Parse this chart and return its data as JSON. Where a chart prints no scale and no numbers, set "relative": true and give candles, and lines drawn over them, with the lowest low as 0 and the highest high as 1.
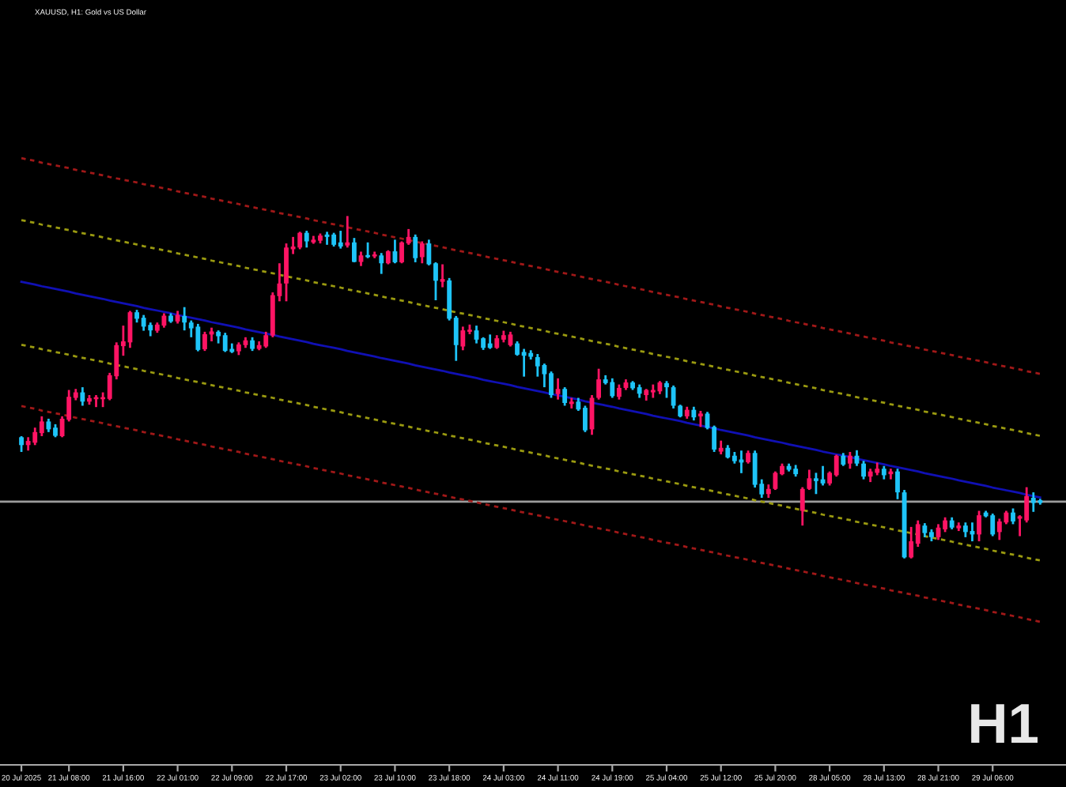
{
  "chart_data": {
    "type": "candlestick",
    "title": "XAUUSD, H1: Gold vs US Dollar",
    "relative": true,
    "tick_labels": "x",
    "categories": [
      "20 Jul 2025",
      null,
      null,
      null,
      null,
      null,
      null,
      "21 Jul 08:00",
      null,
      null,
      null,
      null,
      null,
      null,
      null,
      "21 Jul 16:00",
      null,
      null,
      null,
      null,
      null,
      null,
      null,
      "22 Jul 01:00",
      null,
      null,
      null,
      null,
      null,
      null,
      null,
      "22 Jul 09:00",
      null,
      null,
      null,
      null,
      null,
      null,
      null,
      "22 Jul 17:00",
      null,
      null,
      null,
      null,
      null,
      null,
      null,
      "23 Jul 02:00",
      null,
      null,
      null,
      null,
      null,
      null,
      null,
      "23 Jul 10:00",
      null,
      null,
      null,
      null,
      null,
      null,
      null,
      "23 Jul 18:00",
      null,
      null,
      null,
      null,
      null,
      null,
      null,
      "24 Jul 03:00",
      null,
      null,
      null,
      null,
      null,
      null,
      null,
      "24 Jul 11:00",
      null,
      null,
      null,
      null,
      null,
      null,
      null,
      "24 Jul 19:00",
      null,
      null,
      null,
      null,
      null,
      null,
      null,
      "25 Jul 04:00",
      null,
      null,
      null,
      null,
      null,
      null,
      null,
      "25 Jul 12:00",
      null,
      null,
      null,
      null,
      null,
      null,
      null,
      "25 Jul 20:00",
      null,
      null,
      null,
      null,
      null,
      null,
      null,
      "28 Jul 05:00",
      null,
      null,
      null,
      null,
      null,
      null,
      null,
      "28 Jul 13:00",
      null,
      null,
      null,
      null,
      null,
      null,
      null,
      "28 Jul 21:00",
      null,
      null,
      null,
      null,
      null,
      null,
      null,
      "29 Jul 06:00",
      null,
      null,
      null,
      null,
      null,
      null,
      null
    ],
    "ohlc": [
      [
        0.354,
        0.357,
        0.311,
        0.331
      ],
      [
        0.331,
        0.354,
        0.315,
        0.343
      ],
      [
        0.338,
        0.382,
        0.331,
        0.369
      ],
      [
        0.366,
        0.415,
        0.357,
        0.4
      ],
      [
        0.4,
        0.408,
        0.369,
        0.377
      ],
      [
        0.382,
        0.392,
        0.354,
        0.358
      ],
      [
        0.357,
        0.415,
        0.354,
        0.408
      ],
      [
        0.405,
        0.492,
        0.4,
        0.472
      ],
      [
        0.469,
        0.495,
        0.462,
        0.485
      ],
      [
        0.485,
        0.5,
        0.446,
        0.458
      ],
      [
        0.458,
        0.477,
        0.449,
        0.468
      ],
      [
        0.465,
        0.477,
        0.442,
        0.468
      ],
      [
        0.465,
        0.485,
        0.442,
        0.471
      ],
      [
        0.466,
        0.542,
        0.462,
        0.535
      ],
      [
        0.532,
        0.631,
        0.523,
        0.623
      ],
      [
        0.62,
        0.68,
        0.592,
        0.634
      ],
      [
        0.631,
        0.723,
        0.615,
        0.719
      ],
      [
        0.719,
        0.726,
        0.689,
        0.7
      ],
      [
        0.703,
        0.711,
        0.665,
        0.677
      ],
      [
        0.682,
        0.689,
        0.649,
        0.666
      ],
      [
        0.665,
        0.689,
        0.659,
        0.683
      ],
      [
        0.68,
        0.716,
        0.674,
        0.709
      ],
      [
        0.709,
        0.716,
        0.688,
        0.692
      ],
      [
        0.692,
        0.723,
        0.686,
        0.711
      ],
      [
        0.708,
        0.734,
        0.666,
        0.689
      ],
      [
        0.689,
        0.695,
        0.646,
        0.672
      ],
      [
        0.677,
        0.685,
        0.605,
        0.609
      ],
      [
        0.611,
        0.662,
        0.606,
        0.655
      ],
      [
        0.654,
        0.674,
        0.634,
        0.663
      ],
      [
        0.662,
        0.666,
        0.628,
        0.649
      ],
      [
        0.652,
        0.659,
        0.603,
        0.606
      ],
      [
        0.612,
        0.628,
        0.6,
        0.603
      ],
      [
        0.605,
        0.631,
        0.594,
        0.625
      ],
      [
        0.623,
        0.646,
        0.615,
        0.637
      ],
      [
        0.637,
        0.646,
        0.606,
        0.612
      ],
      [
        0.612,
        0.634,
        0.608,
        0.623
      ],
      [
        0.619,
        0.662,
        0.615,
        0.652
      ],
      [
        0.651,
        0.777,
        0.646,
        0.769
      ],
      [
        0.766,
        0.862,
        0.751,
        0.803
      ],
      [
        0.803,
        0.92,
        0.751,
        0.908
      ],
      [
        0.903,
        0.939,
        0.889,
        0.911
      ],
      [
        0.908,
        0.954,
        0.903,
        0.951
      ],
      [
        0.951,
        0.957,
        0.908,
        0.926
      ],
      [
        0.923,
        0.942,
        0.919,
        0.931
      ],
      [
        0.928,
        0.949,
        0.92,
        0.943
      ],
      [
        0.946,
        0.954,
        0.916,
        0.939
      ],
      [
        0.946,
        0.951,
        0.911,
        0.916
      ],
      [
        0.923,
        0.957,
        0.905,
        0.911
      ],
      [
        0.914,
        1,
        0.908,
        0.923
      ],
      [
        0.923,
        0.936,
        0.865,
        0.866
      ],
      [
        0.866,
        0.896,
        0.854,
        0.885
      ],
      [
        0.885,
        0.923,
        0.877,
        0.88
      ],
      [
        0.882,
        0.896,
        0.877,
        0.888
      ],
      [
        0.885,
        0.892,
        0.831,
        0.862
      ],
      [
        0.862,
        0.9,
        0.859,
        0.897
      ],
      [
        0.897,
        0.931,
        0.862,
        0.865
      ],
      [
        0.865,
        0.926,
        0.862,
        0.923
      ],
      [
        0.92,
        0.962,
        0.916,
        0.939
      ],
      [
        0.939,
        0.946,
        0.865,
        0.877
      ],
      [
        0.88,
        0.926,
        0.862,
        0.92
      ],
      [
        0.92,
        0.931,
        0.856,
        0.859
      ],
      [
        0.862,
        0.865,
        0.754,
        0.811
      ],
      [
        0.808,
        0.859,
        0.792,
        0.816
      ],
      [
        0.812,
        0.819,
        0.695,
        0.7
      ],
      [
        0.703,
        0.708,
        0.577,
        0.623
      ],
      [
        0.619,
        0.677,
        0.608,
        0.666
      ],
      [
        0.662,
        0.683,
        0.655,
        0.668
      ],
      [
        0.666,
        0.68,
        0.628,
        0.639
      ],
      [
        0.643,
        0.646,
        0.609,
        0.615
      ],
      [
        0.628,
        0.654,
        0.612,
        0.615
      ],
      [
        0.615,
        0.652,
        0.612,
        0.643
      ],
      [
        0.639,
        0.665,
        0.631,
        0.652
      ],
      [
        0.623,
        0.662,
        0.619,
        0.654
      ],
      [
        0.628,
        0.634,
        0.592,
        0.595
      ],
      [
        0.603,
        0.612,
        0.531,
        0.592
      ],
      [
        0.6,
        0.608,
        0.581,
        0.589
      ],
      [
        0.588,
        0.597,
        0.531,
        0.561
      ],
      [
        0.565,
        0.569,
        0.5,
        0.538
      ],
      [
        0.541,
        0.546,
        0.469,
        0.477
      ],
      [
        0.48,
        0.526,
        0.464,
        0.495
      ],
      [
        0.495,
        0.5,
        0.446,
        0.454
      ],
      [
        0.451,
        0.469,
        0.438,
        0.458
      ],
      [
        0.458,
        0.469,
        0.431,
        0.435
      ],
      [
        0.44,
        0.446,
        0.369,
        0.374
      ],
      [
        0.377,
        0.477,
        0.361,
        0.469
      ],
      [
        0.469,
        0.554,
        0.464,
        0.523
      ],
      [
        0.523,
        0.535,
        0.508,
        0.512
      ],
      [
        0.515,
        0.526,
        0.469,
        0.474
      ],
      [
        0.472,
        0.508,
        0.464,
        0.498
      ],
      [
        0.498,
        0.523,
        0.492,
        0.514
      ],
      [
        0.514,
        0.518,
        0.492,
        0.497
      ],
      [
        0.5,
        0.508,
        0.469,
        0.481
      ],
      [
        0.477,
        0.495,
        0.461,
        0.492
      ],
      [
        0.485,
        0.508,
        0.469,
        0.492
      ],
      [
        0.488,
        0.518,
        0.48,
        0.514
      ],
      [
        0.512,
        0.518,
        0.469,
        0.5
      ],
      [
        0.5,
        0.505,
        0.438,
        0.446
      ],
      [
        0.446,
        0.449,
        0.412,
        0.415
      ],
      [
        0.415,
        0.443,
        0.408,
        0.434
      ],
      [
        0.434,
        0.443,
        0.403,
        0.412
      ],
      [
        0.415,
        0.431,
        0.384,
        0.423
      ],
      [
        0.423,
        0.428,
        0.377,
        0.381
      ],
      [
        0.384,
        0.388,
        0.311,
        0.318
      ],
      [
        0.312,
        0.344,
        0.304,
        0.323
      ],
      [
        0.323,
        0.331,
        0.292,
        0.295
      ],
      [
        0.3,
        0.311,
        0.277,
        0.284
      ],
      [
        0.289,
        0.315,
        0.249,
        0.28
      ],
      [
        0.281,
        0.315,
        0.277,
        0.308
      ],
      [
        0.308,
        0.315,
        0.207,
        0.215
      ],
      [
        0.218,
        0.231,
        0.177,
        0.187
      ],
      [
        0.188,
        0.216,
        0.177,
        0.203
      ],
      [
        0.203,
        0.254,
        0.2,
        0.25
      ],
      [
        0.246,
        0.277,
        0.243,
        0.27
      ],
      [
        0.27,
        0.277,
        0.254,
        0.259
      ],
      [
        0.262,
        0.273,
        0.239,
        0.246
      ],
      [
        0.139,
        0.208,
        0.096,
        0.203
      ],
      [
        0.203,
        0.259,
        0.2,
        0.234
      ],
      [
        0.234,
        0.25,
        0.188,
        0.226
      ],
      [
        0.231,
        0.27,
        0.213,
        0.219
      ],
      [
        0.219,
        0.254,
        0.213,
        0.25
      ],
      [
        0.243,
        0.303,
        0.239,
        0.3
      ],
      [
        0.3,
        0.308,
        0.27,
        0.274
      ],
      [
        0.277,
        0.311,
        0.262,
        0.3
      ],
      [
        0.3,
        0.316,
        0.27,
        0.277
      ],
      [
        0.277,
        0.285,
        0.231,
        0.239
      ],
      [
        0.239,
        0.262,
        0.223,
        0.254
      ],
      [
        0.25,
        0.28,
        0.243,
        0.262
      ],
      [
        0.262,
        0.27,
        0.231,
        0.243
      ],
      [
        0.246,
        0.262,
        0.231,
        0.254
      ],
      [
        0.254,
        0.262,
        0.173,
        0.193
      ],
      [
        0.193,
        0.2,
        0,
        0.003
      ],
      [
        0.003,
        0.092,
        0,
        0.05
      ],
      [
        0.043,
        0.111,
        0.034,
        0.1
      ],
      [
        0.096,
        0.103,
        0.062,
        0.074
      ],
      [
        0.077,
        0.085,
        0.05,
        0.062
      ],
      [
        0.062,
        0.1,
        0.054,
        0.09
      ],
      [
        0.085,
        0.12,
        0.077,
        0.111
      ],
      [
        0.111,
        0.12,
        0.085,
        0.09
      ],
      [
        0.088,
        0.105,
        0.08,
        0.096
      ],
      [
        0.096,
        0.105,
        0.062,
        0.077
      ],
      [
        0.08,
        0.105,
        0.05,
        0.07
      ],
      [
        0.07,
        0.139,
        0.05,
        0.126
      ],
      [
        0.134,
        0.139,
        0.12,
        0.123
      ],
      [
        0.126,
        0.131,
        0.065,
        0.07
      ],
      [
        0.077,
        0.116,
        0.054,
        0.108
      ],
      [
        0.105,
        0.139,
        0.1,
        0.134
      ],
      [
        0.134,
        0.146,
        0.1,
        0.108
      ],
      [
        0.116,
        0.126,
        0.065,
        0.123
      ],
      [
        0.111,
        0.208,
        0.105,
        0.182
      ],
      [
        0.177,
        0.193,
        0.136,
        0.162
      ],
      [
        0.17,
        0.174,
        0.157,
        0.162
      ]
    ],
    "colors": [
      "#1ec4f8",
      "#ff1464",
      "#ff1464",
      "#ff1464",
      "#1ec4f8",
      "#1ec4f8",
      "#ff1464",
      "#ff1464",
      "#ff1464",
      "#1ec4f8",
      "#ff1464",
      "#ff1464",
      "#ff1464",
      "#ff1464",
      "#ff1464",
      "#ff1464",
      "#ff1464",
      "#1ec4f8",
      "#1ec4f8",
      "#1ec4f8",
      "#ff1464",
      "#ff1464",
      "#1ec4f8",
      "#ff1464",
      "#1ec4f8",
      "#1ec4f8",
      "#1ec4f8",
      "#ff1464",
      "#ff1464",
      "#1ec4f8",
      "#1ec4f8",
      "#1ec4f8",
      "#ff1464",
      "#ff1464",
      "#1ec4f8",
      "#ff1464",
      "#ff1464",
      "#ff1464",
      "#ff1464",
      "#ff1464",
      "#ff1464",
      "#ff1464",
      "#1ec4f8",
      "#ff1464",
      "#ff1464",
      "#1ec4f8",
      "#1ec4f8",
      "#1ec4f8",
      "#ff1464",
      "#1ec4f8",
      "#ff1464",
      "#1ec4f8",
      "#ff1464",
      "#1ec4f8",
      "#ff1464",
      "#1ec4f8",
      "#ff1464",
      "#ff1464",
      "#1ec4f8",
      "#ff1464",
      "#1ec4f8",
      "#1ec4f8",
      "#ff1464",
      "#1ec4f8",
      "#1ec4f8",
      "#ff1464",
      "#ff1464",
      "#1ec4f8",
      "#1ec4f8",
      "#1ec4f8",
      "#ff1464",
      "#ff1464",
      "#ff1464",
      "#1ec4f8",
      "#1ec4f8",
      "#1ec4f8",
      "#1ec4f8",
      "#1ec4f8",
      "#1ec4f8",
      "#ff1464",
      "#1ec4f8",
      "#ff1464",
      "#1ec4f8",
      "#1ec4f8",
      "#ff1464",
      "#ff1464",
      "#1ec4f8",
      "#1ec4f8",
      "#ff1464",
      "#ff1464",
      "#1ec4f8",
      "#1ec4f8",
      "#ff1464",
      "#ff1464",
      "#ff1464",
      "#1ec4f8",
      "#1ec4f8",
      "#1ec4f8",
      "#ff1464",
      "#1ec4f8",
      "#ff1464",
      "#1ec4f8",
      "#1ec4f8",
      "#ff1464",
      "#1ec4f8",
      "#1ec4f8",
      "#1ec4f8",
      "#ff1464",
      "#1ec4f8",
      "#1ec4f8",
      "#ff1464",
      "#ff1464",
      "#ff1464",
      "#1ec4f8",
      "#1ec4f8",
      "#ff1464",
      "#ff1464",
      "#1ec4f8",
      "#1ec4f8",
      "#ff1464",
      "#ff1464",
      "#1ec4f8",
      "#ff1464",
      "#1ec4f8",
      "#1ec4f8",
      "#ff1464",
      "#ff1464",
      "#1ec4f8",
      "#ff1464",
      "#1ec4f8",
      "#1ec4f8",
      "#ff1464",
      "#ff1464",
      "#1ec4f8",
      "#1ec4f8",
      "#ff1464",
      "#ff1464",
      "#1ec4f8",
      "#ff1464",
      "#1ec4f8",
      "#1ec4f8",
      "#ff1464",
      "#1ec4f8",
      "#1ec4f8",
      "#ff1464",
      "#ff1464",
      "#1ec4f8",
      "#ff1464",
      "#ff1464",
      "#1ec4f8",
      "#1ec4f8"
    ],
    "series": [
      {
        "type": "line",
        "color": "#a01818",
        "line_style": "dotted",
        "values": [
          1.169,
          1.165,
          1.161,
          1.156,
          1.152,
          1.148,
          1.144,
          1.14,
          1.135,
          1.131,
          1.127,
          1.123,
          1.119,
          1.114,
          1.11,
          1.106,
          1.102,
          1.098,
          1.093,
          1.089,
          1.085,
          1.081,
          1.077,
          1.072,
          1.068,
          1.064,
          1.06,
          1.056,
          1.051,
          1.047,
          1.043,
          1.039,
          1.035,
          1.03,
          1.026,
          1.022,
          1.018,
          1.014,
          1.009,
          1.005,
          1.001,
          0.997,
          0.993,
          0.988,
          0.984,
          0.98,
          0.976,
          0.972,
          0.967,
          0.963,
          0.959,
          0.955,
          0.951,
          0.946,
          0.942,
          0.938,
          0.934,
          0.93,
          0.925,
          0.921,
          0.917,
          0.913,
          0.909,
          0.904,
          0.9,
          0.896,
          0.892,
          0.888,
          0.883,
          0.879,
          0.875,
          0.871,
          0.867,
          0.862,
          0.858,
          0.854,
          0.85,
          0.846,
          0.841,
          0.837,
          0.833,
          0.829,
          0.825,
          0.82,
          0.816,
          0.812,
          0.808,
          0.804,
          0.799,
          0.795,
          0.791,
          0.787,
          0.783,
          0.778,
          0.774,
          0.77,
          0.766,
          0.762,
          0.757,
          0.753,
          0.749,
          0.745,
          0.741,
          0.736,
          0.732,
          0.728,
          0.724,
          0.72,
          0.715,
          0.711,
          0.707,
          0.703,
          0.699,
          0.694,
          0.69,
          0.686,
          0.682,
          0.678,
          0.673,
          0.669,
          0.665,
          0.661,
          0.657,
          0.652,
          0.648,
          0.644,
          0.64,
          0.636,
          0.631,
          0.627,
          0.623,
          0.619,
          0.615,
          0.61,
          0.606,
          0.602,
          0.598,
          0.594,
          0.589,
          0.585,
          0.581,
          0.577,
          0.573,
          0.568,
          0.564,
          0.56,
          0.556,
          0.552,
          0.547,
          0.543,
          0.539
        ]
      },
      {
        "type": "line",
        "color": "#9a9a10",
        "line_style": "dotted",
        "values": [
          0.988,
          0.984,
          0.98,
          0.975,
          0.971,
          0.967,
          0.963,
          0.959,
          0.954,
          0.95,
          0.946,
          0.942,
          0.938,
          0.933,
          0.929,
          0.925,
          0.921,
          0.917,
          0.912,
          0.908,
          0.904,
          0.9,
          0.896,
          0.891,
          0.887,
          0.883,
          0.879,
          0.875,
          0.87,
          0.866,
          0.862,
          0.858,
          0.854,
          0.849,
          0.845,
          0.841,
          0.837,
          0.833,
          0.828,
          0.824,
          0.82,
          0.816,
          0.812,
          0.807,
          0.803,
          0.799,
          0.795,
          0.791,
          0.786,
          0.782,
          0.778,
          0.774,
          0.77,
          0.765,
          0.761,
          0.757,
          0.753,
          0.749,
          0.744,
          0.74,
          0.736,
          0.732,
          0.728,
          0.723,
          0.719,
          0.715,
          0.711,
          0.707,
          0.702,
          0.698,
          0.694,
          0.69,
          0.686,
          0.681,
          0.677,
          0.673,
          0.669,
          0.665,
          0.66,
          0.656,
          0.652,
          0.648,
          0.644,
          0.639,
          0.635,
          0.631,
          0.627,
          0.623,
          0.618,
          0.614,
          0.61,
          0.606,
          0.602,
          0.597,
          0.593,
          0.589,
          0.585,
          0.581,
          0.576,
          0.572,
          0.568,
          0.564,
          0.56,
          0.555,
          0.551,
          0.547,
          0.543,
          0.539,
          0.534,
          0.53,
          0.526,
          0.522,
          0.518,
          0.513,
          0.509,
          0.505,
          0.501,
          0.497,
          0.492,
          0.488,
          0.484,
          0.48,
          0.476,
          0.471,
          0.467,
          0.463,
          0.459,
          0.455,
          0.45,
          0.446,
          0.442,
          0.438,
          0.434,
          0.429,
          0.425,
          0.421,
          0.417,
          0.413,
          0.408,
          0.404,
          0.4,
          0.396,
          0.392,
          0.387,
          0.383,
          0.379,
          0.375,
          0.371,
          0.366,
          0.362,
          0.358
        ]
      },
      {
        "type": "line",
        "color": "#1010b4",
        "line_style": "solid",
        "values": [
          0.808,
          0.804,
          0.8,
          0.795,
          0.791,
          0.787,
          0.783,
          0.779,
          0.774,
          0.77,
          0.766,
          0.762,
          0.758,
          0.753,
          0.749,
          0.745,
          0.741,
          0.737,
          0.732,
          0.728,
          0.724,
          0.72,
          0.716,
          0.711,
          0.707,
          0.703,
          0.699,
          0.695,
          0.69,
          0.686,
          0.682,
          0.678,
          0.674,
          0.669,
          0.665,
          0.661,
          0.657,
          0.653,
          0.648,
          0.644,
          0.64,
          0.636,
          0.632,
          0.627,
          0.623,
          0.619,
          0.615,
          0.611,
          0.606,
          0.602,
          0.598,
          0.594,
          0.59,
          0.585,
          0.581,
          0.577,
          0.573,
          0.569,
          0.564,
          0.56,
          0.556,
          0.552,
          0.548,
          0.543,
          0.539,
          0.535,
          0.531,
          0.527,
          0.522,
          0.518,
          0.514,
          0.51,
          0.506,
          0.501,
          0.497,
          0.493,
          0.489,
          0.485,
          0.48,
          0.476,
          0.472,
          0.468,
          0.464,
          0.459,
          0.455,
          0.451,
          0.447,
          0.443,
          0.438,
          0.434,
          0.43,
          0.426,
          0.422,
          0.417,
          0.413,
          0.409,
          0.405,
          0.401,
          0.396,
          0.392,
          0.388,
          0.384,
          0.38,
          0.375,
          0.371,
          0.367,
          0.363,
          0.359,
          0.354,
          0.35,
          0.346,
          0.342,
          0.338,
          0.333,
          0.329,
          0.325,
          0.321,
          0.317,
          0.312,
          0.308,
          0.304,
          0.3,
          0.296,
          0.291,
          0.287,
          0.283,
          0.279,
          0.275,
          0.27,
          0.266,
          0.262,
          0.258,
          0.254,
          0.249,
          0.245,
          0.241,
          0.237,
          0.233,
          0.228,
          0.224,
          0.22,
          0.216,
          0.212,
          0.207,
          0.203,
          0.199,
          0.195,
          0.191,
          0.186,
          0.182,
          0.178
        ]
      },
      {
        "type": "line",
        "color": "#9a9a10",
        "line_style": "dotted",
        "values": [
          0.624,
          0.62,
          0.616,
          0.611,
          0.607,
          0.603,
          0.599,
          0.595,
          0.59,
          0.586,
          0.582,
          0.578,
          0.574,
          0.569,
          0.565,
          0.561,
          0.557,
          0.553,
          0.548,
          0.544,
          0.54,
          0.536,
          0.532,
          0.527,
          0.523,
          0.519,
          0.515,
          0.511,
          0.506,
          0.502,
          0.498,
          0.494,
          0.49,
          0.485,
          0.481,
          0.477,
          0.473,
          0.469,
          0.464,
          0.46,
          0.456,
          0.452,
          0.448,
          0.443,
          0.439,
          0.435,
          0.431,
          0.427,
          0.422,
          0.418,
          0.414,
          0.41,
          0.406,
          0.401,
          0.397,
          0.393,
          0.389,
          0.385,
          0.38,
          0.376,
          0.372,
          0.368,
          0.364,
          0.359,
          0.355,
          0.351,
          0.347,
          0.343,
          0.338,
          0.334,
          0.33,
          0.326,
          0.322,
          0.317,
          0.313,
          0.309,
          0.305,
          0.301,
          0.296,
          0.292,
          0.288,
          0.284,
          0.28,
          0.275,
          0.271,
          0.267,
          0.263,
          0.259,
          0.254,
          0.25,
          0.246,
          0.242,
          0.238,
          0.233,
          0.229,
          0.225,
          0.221,
          0.217,
          0.212,
          0.208,
          0.204,
          0.2,
          0.196,
          0.191,
          0.187,
          0.183,
          0.179,
          0.175,
          0.17,
          0.166,
          0.162,
          0.158,
          0.154,
          0.149,
          0.145,
          0.141,
          0.137,
          0.133,
          0.128,
          0.124,
          0.12,
          0.116,
          0.112,
          0.107,
          0.103,
          0.099,
          0.095,
          0.091,
          0.086,
          0.082,
          0.078,
          0.074,
          0.07,
          0.065,
          0.061,
          0.057,
          0.053,
          0.049,
          0.044,
          0.04,
          0.036,
          0.032,
          0.028,
          0.023,
          0.019,
          0.015,
          0.011,
          0.007,
          0.002,
          -0.002,
          -0.006
        ]
      },
      {
        "type": "line",
        "color": "#a01818",
        "line_style": "dotted",
        "values": [
          0.445,
          0.441,
          0.437,
          0.432,
          0.428,
          0.424,
          0.42,
          0.416,
          0.411,
          0.407,
          0.403,
          0.399,
          0.395,
          0.39,
          0.386,
          0.382,
          0.378,
          0.374,
          0.369,
          0.365,
          0.361,
          0.357,
          0.353,
          0.348,
          0.344,
          0.34,
          0.336,
          0.332,
          0.327,
          0.323,
          0.319,
          0.315,
          0.311,
          0.306,
          0.302,
          0.298,
          0.294,
          0.29,
          0.285,
          0.281,
          0.277,
          0.273,
          0.269,
          0.264,
          0.26,
          0.256,
          0.252,
          0.248,
          0.243,
          0.239,
          0.235,
          0.231,
          0.227,
          0.222,
          0.218,
          0.214,
          0.21,
          0.206,
          0.201,
          0.197,
          0.193,
          0.189,
          0.185,
          0.18,
          0.176,
          0.172,
          0.168,
          0.164,
          0.159,
          0.155,
          0.151,
          0.147,
          0.143,
          0.138,
          0.134,
          0.13,
          0.126,
          0.122,
          0.117,
          0.113,
          0.109,
          0.105,
          0.101,
          0.096,
          0.092,
          0.088,
          0.084,
          0.08,
          0.075,
          0.071,
          0.067,
          0.063,
          0.059,
          0.054,
          0.05,
          0.046,
          0.042,
          0.038,
          0.033,
          0.029,
          0.025,
          0.021,
          0.017,
          0.012,
          0.008,
          0.004,
          0,
          -0.004,
          -0.009,
          -0.013,
          -0.017,
          -0.021,
          -0.025,
          -0.03,
          -0.034,
          -0.038,
          -0.042,
          -0.046,
          -0.051,
          -0.055,
          -0.059,
          -0.063,
          -0.067,
          -0.072,
          -0.076,
          -0.08,
          -0.084,
          -0.088,
          -0.093,
          -0.097,
          -0.101,
          -0.105,
          -0.109,
          -0.114,
          -0.118,
          -0.122,
          -0.126,
          -0.13,
          -0.135,
          -0.139,
          -0.143,
          -0.147,
          -0.151,
          -0.156,
          -0.16,
          -0.164,
          -0.168,
          -0.172,
          -0.177,
          -0.181,
          -0.185
        ]
      }
    ],
    "ref_lines": [
      {
        "axis": "y",
        "value": 0.166,
        "color": "#9c9c9c"
      }
    ],
    "annotations": [
      "H1"
    ]
  }
}
